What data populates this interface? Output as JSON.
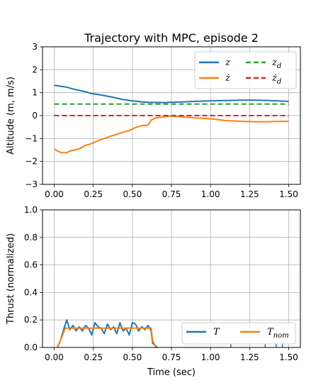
{
  "chart_data": [
    {
      "type": "line",
      "title": "Trajectory with MPC, episode 2",
      "xlabel": "",
      "ylabel": "Altitude (m, m/s)",
      "xlim": [
        -0.075,
        1.575
      ],
      "ylim": [
        -3,
        3
      ],
      "xticks": [
        0.0,
        0.25,
        0.5,
        0.75,
        1.0,
        1.25,
        1.5
      ],
      "xtick_labels": [
        "0.00",
        "0.25",
        "0.50",
        "0.75",
        "1.00",
        "1.25",
        "1.50"
      ],
      "yticks": [
        -3,
        -2,
        -1,
        0,
        1,
        2,
        3
      ],
      "ytick_labels": [
        "−3",
        "−2",
        "−1",
        "0",
        "1",
        "2",
        "3"
      ],
      "grid": true,
      "legend_position": "top-right",
      "series": [
        {
          "name": "z",
          "color": "#1f77b4",
          "dash": "solid",
          "x": [
            0.0,
            0.04,
            0.08,
            0.12,
            0.16,
            0.2,
            0.24,
            0.3,
            0.36,
            0.4,
            0.44,
            0.5,
            0.56,
            0.6,
            0.7,
            0.8,
            0.9,
            1.0,
            1.1,
            1.2,
            1.3,
            1.4,
            1.5
          ],
          "y": [
            1.32,
            1.28,
            1.24,
            1.16,
            1.1,
            1.04,
            0.96,
            0.9,
            0.82,
            0.76,
            0.7,
            0.64,
            0.6,
            0.58,
            0.57,
            0.59,
            0.62,
            0.64,
            0.66,
            0.67,
            0.67,
            0.65,
            0.62
          ]
        },
        {
          "name": "ż",
          "color": "#ff7f0e",
          "dash": "solid",
          "x": [
            0.0,
            0.02,
            0.05,
            0.08,
            0.1,
            0.13,
            0.16,
            0.2,
            0.24,
            0.28,
            0.32,
            0.36,
            0.4,
            0.44,
            0.48,
            0.52,
            0.56,
            0.6,
            0.62,
            0.65,
            0.7,
            0.75,
            0.8,
            0.9,
            1.0,
            1.05,
            1.1,
            1.2,
            1.3,
            1.4,
            1.5
          ],
          "y": [
            -1.45,
            -1.55,
            -1.62,
            -1.62,
            -1.55,
            -1.5,
            -1.45,
            -1.3,
            -1.22,
            -1.1,
            -1.0,
            -0.9,
            -0.82,
            -0.72,
            -0.66,
            -0.52,
            -0.44,
            -0.42,
            -0.2,
            -0.1,
            -0.06,
            -0.02,
            -0.05,
            -0.1,
            -0.14,
            -0.18,
            -0.22,
            -0.25,
            -0.27,
            -0.26,
            -0.25
          ]
        },
        {
          "name": "z_d",
          "color": "#2ca02c",
          "dash": "dashed",
          "x": [
            0.0,
            1.5
          ],
          "y": [
            0.5,
            0.5
          ]
        },
        {
          "name": "ż_d",
          "color": "#d62728",
          "dash": "dashed",
          "x": [
            0.0,
            1.5
          ],
          "y": [
            0.0,
            0.0
          ]
        }
      ]
    },
    {
      "type": "line",
      "title": "",
      "xlabel": "Time (sec)",
      "ylabel": "Thrust (normalized)",
      "xlim": [
        -0.075,
        1.575
      ],
      "ylim": [
        0.0,
        1.0
      ],
      "xticks": [
        0.0,
        0.25,
        0.5,
        0.75,
        1.0,
        1.25,
        1.5
      ],
      "xtick_labels": [
        "0.00",
        "0.25",
        "0.50",
        "0.75",
        "1.00",
        "1.25",
        "1.50"
      ],
      "yticks": [
        0.0,
        0.2,
        0.4,
        0.6,
        0.8,
        1.0
      ],
      "ytick_labels": [
        "0.0",
        "0.2",
        "0.4",
        "0.6",
        "0.8",
        "1.0"
      ],
      "grid": true,
      "legend_position": "lower-right",
      "series": [
        {
          "name": "T",
          "color": "#1f77b4",
          "dash": "solid",
          "x": [
            0.02,
            0.04,
            0.06,
            0.08,
            0.1,
            0.12,
            0.14,
            0.16,
            0.18,
            0.2,
            0.22,
            0.24,
            0.26,
            0.28,
            0.3,
            0.32,
            0.34,
            0.36,
            0.38,
            0.4,
            0.42,
            0.44,
            0.46,
            0.48,
            0.5,
            0.52,
            0.54,
            0.56,
            0.58,
            0.6,
            0.62,
            0.63,
            0.64,
            0.66
          ],
          "y": [
            0.0,
            0.05,
            0.13,
            0.2,
            0.13,
            0.16,
            0.12,
            0.15,
            0.12,
            0.16,
            0.14,
            0.09,
            0.18,
            0.15,
            0.14,
            0.1,
            0.17,
            0.13,
            0.15,
            0.1,
            0.18,
            0.12,
            0.14,
            0.09,
            0.18,
            0.17,
            0.12,
            0.15,
            0.13,
            0.16,
            0.12,
            0.03,
            0.02,
            0.0
          ]
        },
        {
          "name": "T_nom",
          "color": "#ff7f0e",
          "dash": "solid",
          "x": [
            0.02,
            0.05,
            0.07,
            0.62,
            0.63,
            0.65
          ],
          "y": [
            0.0,
            0.08,
            0.14,
            0.14,
            0.05,
            0.0
          ]
        }
      ],
      "extra_marks": {
        "color": "#1f77b4",
        "note_x": [
          1.13,
          1.35,
          1.42,
          1.46
        ],
        "note_y": [
          0.01,
          0.01,
          0.01,
          0.02
        ]
      }
    }
  ],
  "legend_labels": {
    "z": "z",
    "zdot": "ż",
    "zd_base": "z",
    "zd_sub": "d",
    "zdotd_base": "ż",
    "zdotd_sub": "d",
    "T": "T",
    "Tnom_base": "T",
    "Tnom_sub": "nom"
  }
}
